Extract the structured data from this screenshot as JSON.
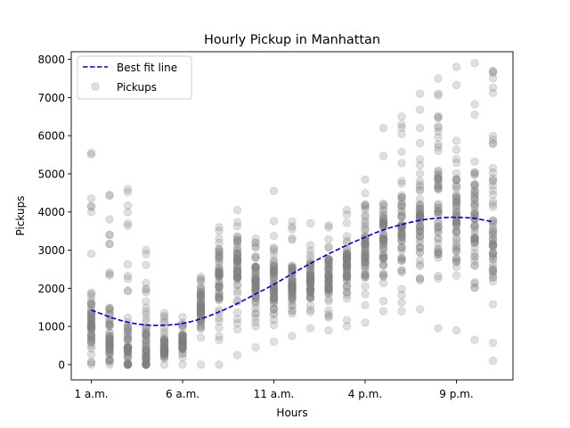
{
  "chart_data": {
    "type": "scatter",
    "title": "Hourly Pickup in Manhattan",
    "xlabel": "Hours",
    "ylabel": "Pickups",
    "xlim": [
      -1.1,
      23.1
    ],
    "ylim": [
      -400,
      8200
    ],
    "x_ticks": [
      {
        "value": 0,
        "label": "1 a.m."
      },
      {
        "value": 5,
        "label": "6 a.m."
      },
      {
        "value": 10,
        "label": "11 a.m."
      },
      {
        "value": 15,
        "label": "4 p.m."
      },
      {
        "value": 20,
        "label": "9 p.m."
      }
    ],
    "y_ticks": [
      0,
      1000,
      2000,
      3000,
      4000,
      5000,
      6000,
      7000,
      8000
    ],
    "legend": {
      "placement": "top-left",
      "entries": [
        {
          "label": "Best fit line",
          "style": "dashed-line"
        },
        {
          "label": "Pickups",
          "style": "marker"
        }
      ]
    },
    "colors": {
      "line": "#0000cc",
      "points": "#808080"
    },
    "series": [
      {
        "name": "Pickups",
        "kind": "scatter",
        "points_per_hour": [
          {
            "hour": 0,
            "min": 0,
            "max": 5550,
            "median": 1000
          },
          {
            "hour": 1,
            "min": 0,
            "max": 4450,
            "median": 700
          },
          {
            "hour": 2,
            "min": 0,
            "max": 4600,
            "median": 450
          },
          {
            "hour": 3,
            "min": 0,
            "max": 3000,
            "median": 400
          },
          {
            "hour": 4,
            "min": 0,
            "max": 1350,
            "median": 450
          },
          {
            "hour": 5,
            "min": 0,
            "max": 1250,
            "median": 600
          },
          {
            "hour": 6,
            "min": 0,
            "max": 2300,
            "median": 1500
          },
          {
            "hour": 7,
            "min": 0,
            "max": 3600,
            "median": 2300
          },
          {
            "hour": 8,
            "min": 250,
            "max": 4050,
            "median": 2700
          },
          {
            "hour": 9,
            "min": 450,
            "max": 3300,
            "median": 2100
          },
          {
            "hour": 10,
            "min": 600,
            "max": 4550,
            "median": 2000
          },
          {
            "hour": 11,
            "min": 750,
            "max": 3750,
            "median": 2100
          },
          {
            "hour": 12,
            "min": 950,
            "max": 3700,
            "median": 2200
          },
          {
            "hour": 13,
            "min": 900,
            "max": 3650,
            "median": 2300
          },
          {
            "hour": 14,
            "min": 1000,
            "max": 4050,
            "median": 2600
          },
          {
            "hour": 15,
            "min": 1100,
            "max": 4850,
            "median": 3000
          },
          {
            "hour": 16,
            "min": 1400,
            "max": 6200,
            "median": 3400
          },
          {
            "hour": 17,
            "min": 1400,
            "max": 6500,
            "median": 3600
          },
          {
            "hour": 18,
            "min": 1450,
            "max": 7100,
            "median": 3900
          },
          {
            "hour": 19,
            "min": 950,
            "max": 7500,
            "median": 4000
          },
          {
            "hour": 20,
            "min": 900,
            "max": 7800,
            "median": 3900
          },
          {
            "hour": 21,
            "min": 650,
            "max": 7900,
            "median": 3800
          },
          {
            "hour": 22,
            "min": 100,
            "max": 7700,
            "median": 3600
          }
        ]
      },
      {
        "name": "Best fit line",
        "kind": "line",
        "x": [
          0,
          1,
          2,
          3,
          4,
          5,
          6,
          7,
          8,
          9,
          10,
          11,
          12,
          13,
          14,
          15,
          16,
          17,
          18,
          19,
          20,
          21,
          22
        ],
        "y": [
          1430,
          1250,
          1110,
          1040,
          1030,
          1080,
          1200,
          1380,
          1600,
          1850,
          2100,
          2380,
          2650,
          2900,
          3130,
          3340,
          3530,
          3670,
          3780,
          3840,
          3860,
          3830,
          3740
        ]
      }
    ]
  }
}
